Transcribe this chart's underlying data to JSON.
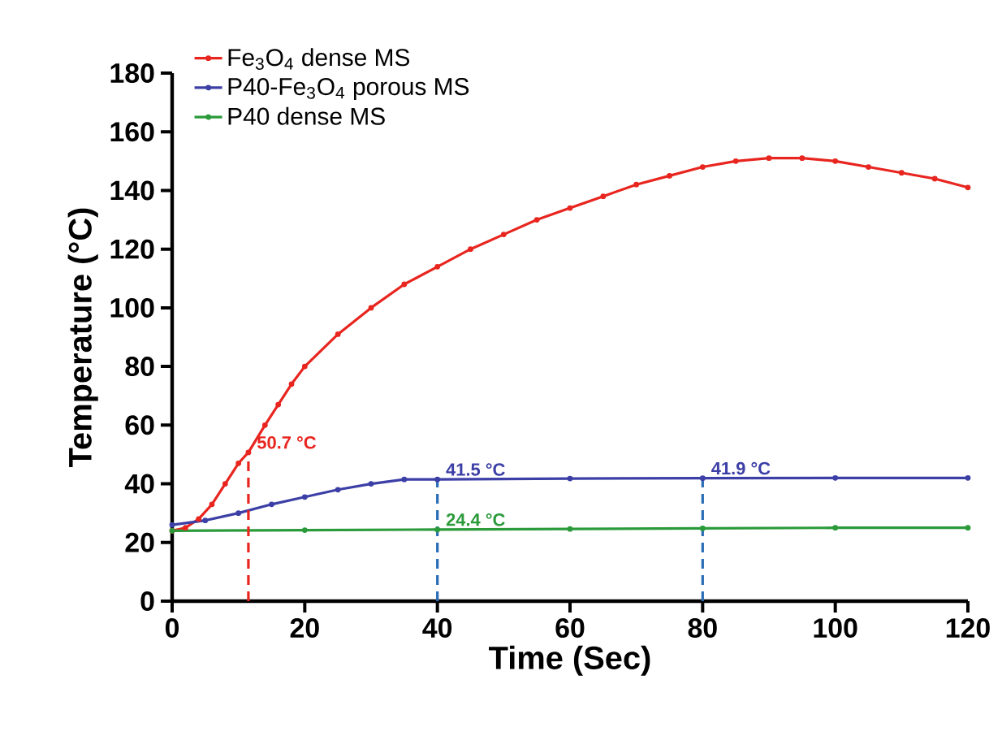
{
  "chart_data": {
    "type": "line",
    "xlabel": "Time (Sec)",
    "ylabel": "Temperature (°C)",
    "xlim": [
      0,
      120
    ],
    "ylim": [
      0,
      180
    ],
    "xticks": [
      0,
      20,
      40,
      60,
      80,
      100,
      120
    ],
    "yticks": [
      0,
      20,
      40,
      60,
      80,
      100,
      120,
      140,
      160,
      180
    ],
    "grid": false,
    "legend": "top left",
    "marker": "circle",
    "series": [
      {
        "name": "Fe$_{3}$O$_{4}$ dense MS",
        "color": "#e8251f",
        "x": [
          0,
          2,
          4,
          6,
          8,
          10,
          11.5,
          14,
          16,
          18,
          20,
          25,
          30,
          35,
          40,
          45,
          50,
          55,
          60,
          65,
          70,
          75,
          80,
          85,
          90,
          95,
          100,
          105,
          110,
          115,
          120
        ],
        "values": [
          24,
          25,
          28,
          33,
          40,
          47,
          50.7,
          60,
          67,
          74,
          80,
          91,
          100,
          108,
          114,
          120,
          125,
          130,
          134,
          138,
          142,
          145,
          148,
          150,
          151,
          151,
          150,
          148,
          146,
          144,
          141
        ]
      },
      {
        "name": "P40-Fe$_{3}$O$_{4}$ porous MS",
        "color": "#3c3fa6",
        "x": [
          0,
          5,
          10,
          15,
          20,
          25,
          30,
          35,
          40,
          60,
          80,
          100,
          120
        ],
        "values": [
          26,
          27.5,
          30,
          33,
          35.5,
          38,
          40,
          41.5,
          41.5,
          41.8,
          41.9,
          42,
          42
        ]
      },
      {
        "name": "P40 dense MS",
        "color": "#2a9a3a",
        "x": [
          0,
          20,
          40,
          60,
          80,
          100,
          120
        ],
        "values": [
          24,
          24.2,
          24.4,
          24.6,
          24.8,
          25,
          25
        ]
      },
      {
        "color": "#e8251f",
        "line_style": "dashed",
        "marker": "none",
        "x": [
          11.5,
          11.5
        ],
        "values": [
          0,
          50.7
        ]
      },
      {
        "color": "#2a6db5",
        "line_style": "dashed",
        "marker": "none",
        "x": [
          40,
          40
        ],
        "values": [
          0,
          41.5
        ]
      },
      {
        "color": "#2a6db5",
        "line_style": "dashed",
        "marker": "none",
        "x": [
          80,
          80
        ],
        "values": [
          0,
          41.9
        ]
      }
    ],
    "annotations": [
      {
        "text": "50.7 °C",
        "x": 11.5,
        "y": 50.7
      },
      {
        "text": "41.5 °C",
        "x": 40,
        "y": 41.5
      },
      {
        "text": "41.9 °C",
        "x": 80,
        "y": 41.9
      },
      {
        "text": "24.4 °C",
        "x": 40,
        "y": 24.4
      }
    ]
  }
}
